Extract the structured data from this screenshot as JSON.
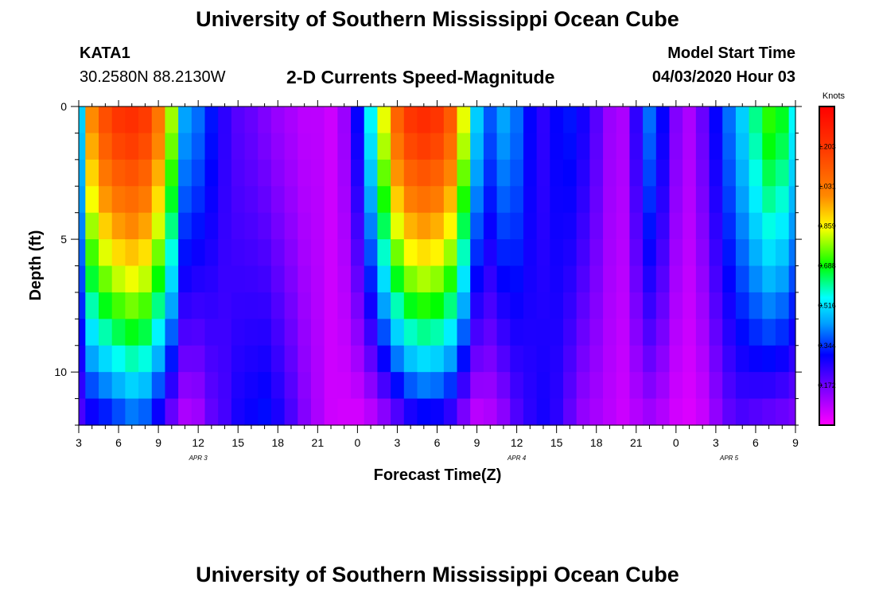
{
  "header": {
    "title": "University of Southern Mississippi Ocean Cube",
    "footer_title": "University of Southern Mississippi Ocean Cube",
    "station": "KATA1",
    "coordinates": "30.2580N 88.2130W",
    "subtitle": "2-D Currents Speed-Magnitude",
    "model_start_label": "Model Start Time",
    "model_start_value": "04/03/2020 Hour 03"
  },
  "chart_data": {
    "type": "heatmap",
    "title": "2-D Currents Speed-Magnitude",
    "xlabel": "Forecast Time(Z)",
    "ylabel": "Depth (ft)",
    "x_tick_labels": [
      "3",
      "6",
      "9",
      "12",
      "15",
      "18",
      "21",
      "0",
      "3",
      "6",
      "9",
      "12",
      "15",
      "18",
      "21",
      "0",
      "3",
      "6",
      "9"
    ],
    "date_labels": [
      {
        "label": "APR 3",
        "hour_index": 9
      },
      {
        "label": "APR 4",
        "hour_index": 33
      },
      {
        "label": "APR 5",
        "hour_index": 49
      }
    ],
    "hours_span": [
      0,
      54
    ],
    "y_tick_labels": [
      "0",
      "5",
      "10"
    ],
    "ylim": [
      0,
      12
    ],
    "y_inverted": true,
    "depth_levels_ft": [
      0.5,
      1.5,
      2.5,
      3.5,
      4.5,
      5.5,
      6.5,
      7.5,
      8.5,
      9.5,
      10.5,
      11.5
    ],
    "colorbar": {
      "unit": "Knots",
      "ticks": [
        "1.203",
        "1.031",
        "0.859",
        "0.688",
        "0.516",
        "0.344",
        "0.172"
      ],
      "range": [
        0,
        1.376
      ]
    },
    "speed_profile_knots": [
      {
        "hour": 0,
        "surface": 0.5,
        "bottom": 0.2
      },
      {
        "hour": 1,
        "surface": 1.0,
        "bottom": 0.25
      },
      {
        "hour": 2,
        "surface": 1.15,
        "bottom": 0.28
      },
      {
        "hour": 3,
        "surface": 1.22,
        "bottom": 0.32
      },
      {
        "hour": 4,
        "surface": 1.24,
        "bottom": 0.36
      },
      {
        "hour": 5,
        "surface": 1.2,
        "bottom": 0.34
      },
      {
        "hour": 6,
        "surface": 1.05,
        "bottom": 0.25
      },
      {
        "hour": 7,
        "surface": 0.8,
        "bottom": 0.15
      },
      {
        "hour": 8,
        "surface": 0.45,
        "bottom": 0.08
      },
      {
        "hour": 9,
        "surface": 0.4,
        "bottom": 0.1
      },
      {
        "hour": 10,
        "surface": 0.32,
        "bottom": 0.18
      },
      {
        "hour": 11,
        "surface": 0.25,
        "bottom": 0.22
      },
      {
        "hour": 12,
        "surface": 0.2,
        "bottom": 0.28
      },
      {
        "hour": 13,
        "surface": 0.18,
        "bottom": 0.3
      },
      {
        "hour": 14,
        "surface": 0.15,
        "bottom": 0.32
      },
      {
        "hour": 15,
        "surface": 0.12,
        "bottom": 0.28
      },
      {
        "hour": 16,
        "surface": 0.1,
        "bottom": 0.22
      },
      {
        "hour": 17,
        "surface": 0.08,
        "bottom": 0.15
      },
      {
        "hour": 18,
        "surface": 0.08,
        "bottom": 0.1
      },
      {
        "hour": 19,
        "surface": 0.06,
        "bottom": 0.06
      },
      {
        "hour": 20,
        "surface": 0.12,
        "bottom": 0.05
      },
      {
        "hour": 21,
        "surface": 0.3,
        "bottom": 0.04
      },
      {
        "hour": 22,
        "surface": 0.55,
        "bottom": 0.06
      },
      {
        "hour": 23,
        "surface": 0.85,
        "bottom": 0.1
      },
      {
        "hour": 24,
        "surface": 1.1,
        "bottom": 0.16
      },
      {
        "hour": 25,
        "surface": 1.22,
        "bottom": 0.22
      },
      {
        "hour": 26,
        "surface": 1.25,
        "bottom": 0.25
      },
      {
        "hour": 27,
        "surface": 1.22,
        "bottom": 0.24
      },
      {
        "hour": 28,
        "surface": 1.12,
        "bottom": 0.2
      },
      {
        "hour": 29,
        "surface": 0.85,
        "bottom": 0.12
      },
      {
        "hour": 30,
        "surface": 0.5,
        "bottom": 0.06
      },
      {
        "hour": 31,
        "surface": 0.38,
        "bottom": 0.08
      },
      {
        "hour": 32,
        "surface": 0.45,
        "bottom": 0.12
      },
      {
        "hour": 33,
        "surface": 0.4,
        "bottom": 0.2
      },
      {
        "hour": 34,
        "surface": 0.3,
        "bottom": 0.25
      },
      {
        "hour": 35,
        "surface": 0.25,
        "bottom": 0.28
      },
      {
        "hour": 36,
        "surface": 0.3,
        "bottom": 0.25
      },
      {
        "hour": 37,
        "surface": 0.32,
        "bottom": 0.18
      },
      {
        "hour": 38,
        "surface": 0.28,
        "bottom": 0.12
      },
      {
        "hour": 39,
        "surface": 0.2,
        "bottom": 0.1
      },
      {
        "hour": 40,
        "surface": 0.12,
        "bottom": 0.08
      },
      {
        "hour": 41,
        "surface": 0.1,
        "bottom": 0.06
      },
      {
        "hour": 42,
        "surface": 0.25,
        "bottom": 0.08
      },
      {
        "hour": 43,
        "surface": 0.4,
        "bottom": 0.1
      },
      {
        "hour": 44,
        "surface": 0.3,
        "bottom": 0.08
      },
      {
        "hour": 45,
        "surface": 0.15,
        "bottom": 0.05
      },
      {
        "hour": 46,
        "surface": 0.1,
        "bottom": 0.04
      },
      {
        "hour": 47,
        "surface": 0.18,
        "bottom": 0.06
      },
      {
        "hour": 48,
        "surface": 0.3,
        "bottom": 0.12
      },
      {
        "hour": 49,
        "surface": 0.4,
        "bottom": 0.18
      },
      {
        "hour": 50,
        "surface": 0.5,
        "bottom": 0.2
      },
      {
        "hour": 51,
        "surface": 0.62,
        "bottom": 0.18
      },
      {
        "hour": 52,
        "surface": 0.72,
        "bottom": 0.16
      },
      {
        "hour": 53,
        "surface": 0.68,
        "bottom": 0.15
      },
      {
        "hour": 54,
        "surface": 0.55,
        "bottom": 0.14
      }
    ]
  }
}
